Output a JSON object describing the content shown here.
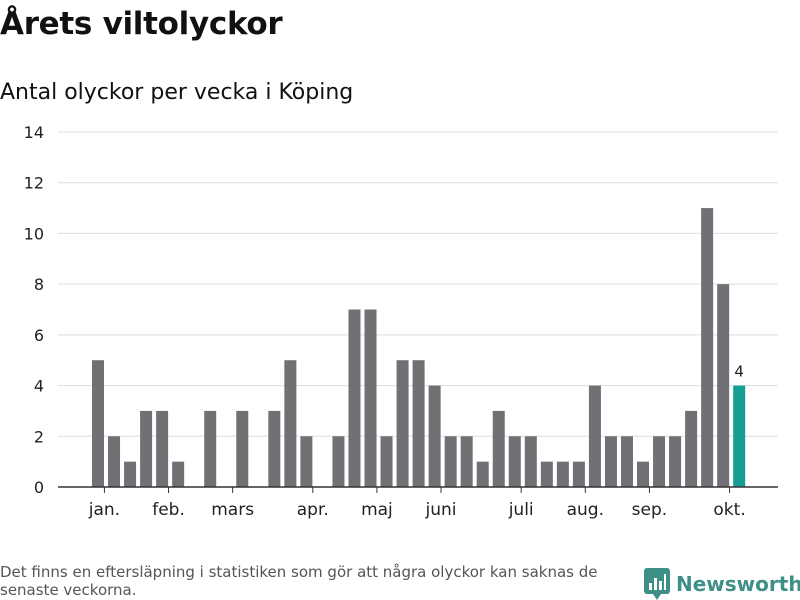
{
  "page": {
    "title": "Årets viltolyckor",
    "subtitle": "Antal olyckor per vecka i Köping",
    "footnote": "Det finns en eftersläpning i statistiken som gör att några olyckor kan saknas de senaste veckorna.",
    "brand": "Newsworthy"
  },
  "chart_data": {
    "type": "bar",
    "title": "Årets viltolyckor",
    "subtitle": "Antal olyckor per vecka i Köping",
    "xlabel": "",
    "ylabel": "",
    "ylim": [
      0,
      14
    ],
    "yticks": [
      0,
      2,
      4,
      6,
      8,
      10,
      12,
      14
    ],
    "grid": true,
    "weeks": [
      1,
      2,
      3,
      4,
      5,
      6,
      7,
      8,
      9,
      10,
      11,
      12,
      13,
      14,
      15,
      16,
      17,
      18,
      19,
      20,
      21,
      22,
      23,
      24,
      25,
      26,
      27,
      28,
      29,
      30,
      31,
      32,
      33,
      34,
      35,
      36,
      37,
      38,
      39,
      40,
      41
    ],
    "values": [
      5,
      2,
      1,
      3,
      3,
      1,
      0,
      3,
      0,
      3,
      0,
      3,
      5,
      2,
      0,
      2,
      7,
      7,
      2,
      5,
      5,
      4,
      2,
      2,
      1,
      3,
      2,
      2,
      1,
      1,
      1,
      4,
      2,
      2,
      1,
      2,
      2,
      3,
      11,
      8,
      4
    ],
    "month_labels": [
      {
        "label": "jan.",
        "week": 1.4
      },
      {
        "label": "feb.",
        "week": 5.4
      },
      {
        "label": "mars",
        "week": 9.4
      },
      {
        "label": "apr.",
        "week": 14.4
      },
      {
        "label": "maj",
        "week": 18.4
      },
      {
        "label": "juni",
        "week": 22.4
      },
      {
        "label": "juli",
        "week": 27.4
      },
      {
        "label": "aug.",
        "week": 31.4
      },
      {
        "label": "sep.",
        "week": 35.4
      },
      {
        "label": "okt.",
        "week": 40.4
      }
    ],
    "highlight": {
      "index": 40,
      "label": "4"
    },
    "colors": {
      "bar": "#717074",
      "highlight": "#159f94",
      "grid": "#dddddd",
      "axis": "#333333",
      "brand": "#3d8f87"
    }
  }
}
